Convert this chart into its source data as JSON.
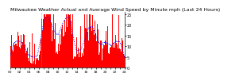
{
  "title": "Milwaukee Weather Actual and Average Wind Speed by Minute mph (Last 24 Hours)",
  "title_fontsize": 4.5,
  "background_color": "#ffffff",
  "plot_bg_color": "#ffffff",
  "bar_color": "#ff0000",
  "line_color": "#0000ff",
  "line_width": 0.7,
  "n_points": 1440,
  "ylim": [
    0,
    26
  ],
  "yticks": [
    0,
    5,
    10,
    15,
    20,
    25
  ],
  "ytick_fontsize": 3.5,
  "xtick_fontsize": 3.2,
  "vline_pos": 0.27,
  "vline_color": "#999999",
  "seed": 12345
}
